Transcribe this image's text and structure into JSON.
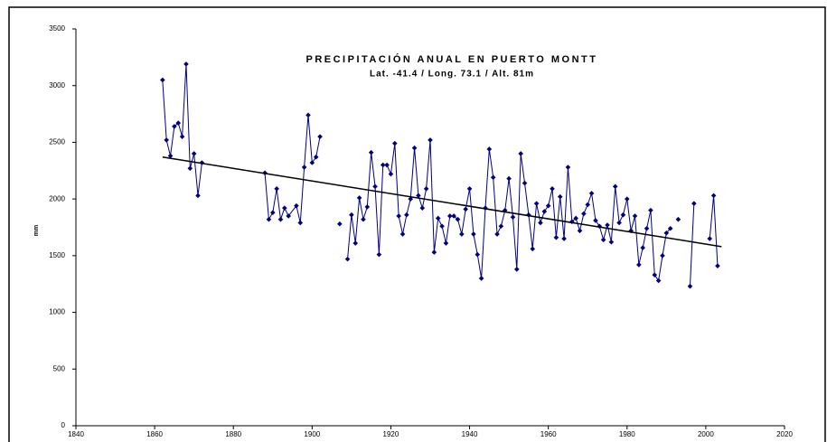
{
  "chart_data": {
    "type": "line",
    "title": "PRECIPITACIÓN ANUAL EN  PUERTO MONTT",
    "subtitle": "Lat. -41.4 / Long. 73.1 / Alt. 81m",
    "y_label": "mm",
    "x": [
      1862,
      1863,
      1864,
      1865,
      1866,
      1867,
      1868,
      1869,
      1870,
      1871,
      1872,
      1873,
      1888,
      1889,
      1890,
      1891,
      1892,
      1893,
      1894,
      1896,
      1897,
      1898,
      1899,
      1900,
      1901,
      1902,
      1903,
      1907,
      1908,
      1909,
      1910,
      1911,
      1912,
      1913,
      1914,
      1915,
      1916,
      1917,
      1918,
      1919,
      1920,
      1921,
      1922,
      1923,
      1924,
      1925,
      1926,
      1927,
      1928,
      1929,
      1930,
      1931,
      1932,
      1933,
      1934,
      1935,
      1936,
      1937,
      1938,
      1939,
      1940,
      1941,
      1942,
      1943,
      1944,
      1945,
      1946,
      1947,
      1948,
      1949,
      1950,
      1951,
      1952,
      1953,
      1954,
      1955,
      1956,
      1957,
      1958,
      1959,
      1960,
      1961,
      1962,
      1963,
      1964,
      1965,
      1966,
      1967,
      1968,
      1969,
      1970,
      1971,
      1972,
      1973,
      1974,
      1975,
      1976,
      1977,
      1978,
      1979,
      1980,
      1981,
      1982,
      1983,
      1984,
      1985,
      1986,
      1987,
      1988,
      1989,
      1990,
      1991,
      1992,
      1993,
      1994,
      1996,
      1997,
      1998,
      2001,
      2002,
      2003
    ],
    "series": [
      {
        "color": "#000080",
        "values": [
          3050,
          2520,
          2380,
          2640,
          2670,
          2550,
          3190,
          2270,
          2400,
          2030,
          2320,
          null,
          2230,
          1820,
          1880,
          2090,
          1820,
          1920,
          1850,
          1940,
          1790,
          2280,
          2740,
          2320,
          2370,
          2550,
          null,
          1780,
          null,
          1470,
          1860,
          1610,
          2010,
          1820,
          1930,
          2410,
          2110,
          1510,
          2300,
          2300,
          2220,
          2490,
          1850,
          1690,
          1860,
          2000,
          2450,
          2030,
          1920,
          2090,
          2520,
          1530,
          1830,
          1760,
          1610,
          1850,
          1850,
          1820,
          1690,
          1910,
          2090,
          1690,
          1510,
          1300,
          1920,
          2440,
          2190,
          1690,
          1760,
          1900,
          2180,
          1840,
          1380,
          2400,
          2140,
          1860,
          1560,
          1960,
          1790,
          1890,
          1940,
          2090,
          1660,
          2020,
          1650,
          2280,
          1800,
          1830,
          1720,
          1870,
          1950,
          2050,
          1810,
          1760,
          1640,
          1770,
          1620,
          2110,
          1790,
          1860,
          2000,
          1720,
          1850,
          1420,
          1570,
          1740,
          1900,
          1330,
          1280,
          1500,
          1700,
          1740,
          null,
          1820,
          null,
          1230,
          1960,
          null,
          1650,
          2030,
          1410
        ]
      }
    ],
    "trend": {
      "color": "#000000",
      "x": [
        1862,
        2004
      ],
      "values": [
        2370,
        1580
      ]
    },
    "xlim": [
      1840,
      2020
    ],
    "xticks": [
      1840,
      1860,
      1880,
      1900,
      1920,
      1940,
      1960,
      1980,
      2000,
      2020
    ],
    "ylim": [
      0,
      3500
    ],
    "yticks": [
      0,
      500,
      1000,
      1500,
      2000,
      2500,
      3000,
      3500
    ],
    "grid": false
  }
}
